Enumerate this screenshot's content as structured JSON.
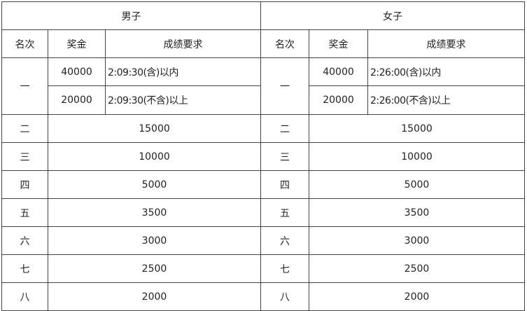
{
  "groups": [
    "男子",
    "女子"
  ],
  "headers": {
    "rank": "名次",
    "prize": "奖金",
    "requirement": "成绩要求"
  },
  "first": {
    "rank": "一",
    "men": [
      {
        "prize": "40000",
        "req": "2:09:30(含)以内"
      },
      {
        "prize": "20000",
        "req": "2:09:30(不含)以上"
      }
    ],
    "women": [
      {
        "prize": "40000",
        "req": "2:26:00(含)以内"
      },
      {
        "prize": "20000",
        "req": "2:26:00(不含)以上"
      }
    ]
  },
  "rows": [
    {
      "rank": "二",
      "men": "15000",
      "women": "15000"
    },
    {
      "rank": "三",
      "men": "10000",
      "women": "10000"
    },
    {
      "rank": "四",
      "men": "5000",
      "women": "5000"
    },
    {
      "rank": "五",
      "men": "3500",
      "women": "3500"
    },
    {
      "rank": "六",
      "men": "3000",
      "women": "3000"
    },
    {
      "rank": "七",
      "men": "2500",
      "women": "2500"
    },
    {
      "rank": "八",
      "men": "2000",
      "women": "2000"
    }
  ]
}
